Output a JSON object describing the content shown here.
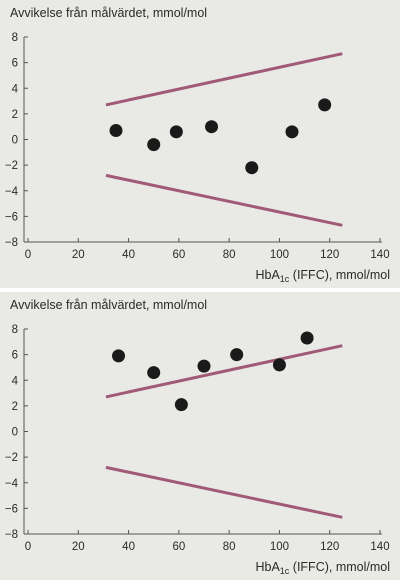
{
  "chart_data": [
    {
      "type": "scatter",
      "ylabel": "Avvikelse från målvärdet, mmol/mol",
      "xlabel": {
        "main": "HbA",
        "sub": "1c",
        "rest": " (IFFC), mmol/mol"
      },
      "xlim": [
        0,
        140
      ],
      "ylim": [
        -8,
        8
      ],
      "xticks": [
        0,
        20,
        40,
        60,
        80,
        100,
        120,
        140
      ],
      "yticks": [
        8,
        6,
        4,
        2,
        0,
        -2,
        -4,
        -6,
        -8
      ],
      "grid": false,
      "points": [
        {
          "x": 35,
          "y": 0.7
        },
        {
          "x": 50,
          "y": -0.4
        },
        {
          "x": 59,
          "y": 0.6
        },
        {
          "x": 73,
          "y": 1.0
        },
        {
          "x": 89,
          "y": -2.2
        },
        {
          "x": 105,
          "y": 0.6
        },
        {
          "x": 118,
          "y": 2.7
        }
      ],
      "limit_lines": [
        {
          "x": [
            31,
            125
          ],
          "y": [
            2.7,
            6.7
          ]
        },
        {
          "x": [
            31,
            125
          ],
          "y": [
            -2.8,
            -6.7
          ]
        }
      ],
      "colors": {
        "points": "#1a1a1a",
        "lines": "#a05a78",
        "axis": "#555555"
      }
    },
    {
      "type": "scatter",
      "ylabel": "Avvikelse från målvärdet, mmol/mol",
      "xlabel": {
        "main": "HbA",
        "sub": "1c",
        "rest": " (IFFC), mmol/mol"
      },
      "xlim": [
        0,
        140
      ],
      "ylim": [
        -8,
        8
      ],
      "xticks": [
        0,
        20,
        40,
        60,
        80,
        100,
        120,
        140
      ],
      "yticks": [
        8,
        6,
        4,
        2,
        0,
        -2,
        -4,
        -6,
        -8
      ],
      "grid": false,
      "points": [
        {
          "x": 36,
          "y": 5.9
        },
        {
          "x": 50,
          "y": 4.6
        },
        {
          "x": 61,
          "y": 2.1
        },
        {
          "x": 70,
          "y": 5.1
        },
        {
          "x": 83,
          "y": 6.0
        },
        {
          "x": 100,
          "y": 5.2
        },
        {
          "x": 111,
          "y": 7.3
        }
      ],
      "limit_lines": [
        {
          "x": [
            31,
            125
          ],
          "y": [
            2.7,
            6.7
          ]
        },
        {
          "x": [
            31,
            125
          ],
          "y": [
            -2.8,
            -6.7
          ]
        }
      ],
      "colors": {
        "points": "#1a1a1a",
        "lines": "#a05a78",
        "axis": "#555555"
      }
    }
  ]
}
